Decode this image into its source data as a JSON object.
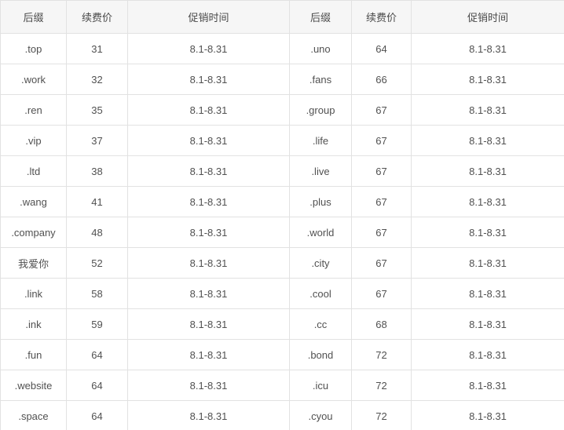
{
  "table": {
    "columns": [
      {
        "label": "后缀"
      },
      {
        "label": "续费价"
      },
      {
        "label": "促销时间"
      },
      {
        "label": "后缀"
      },
      {
        "label": "续费价"
      },
      {
        "label": "促销时间"
      }
    ],
    "rows": [
      [
        ".top",
        "31",
        "8.1-8.31",
        ".uno",
        "64",
        "8.1-8.31"
      ],
      [
        ".work",
        "32",
        "8.1-8.31",
        ".fans",
        "66",
        "8.1-8.31"
      ],
      [
        ".ren",
        "35",
        "8.1-8.31",
        ".group",
        "67",
        "8.1-8.31"
      ],
      [
        ".vip",
        "37",
        "8.1-8.31",
        ".life",
        "67",
        "8.1-8.31"
      ],
      [
        ".ltd",
        "38",
        "8.1-8.31",
        ".live",
        "67",
        "8.1-8.31"
      ],
      [
        ".wang",
        "41",
        "8.1-8.31",
        ".plus",
        "67",
        "8.1-8.31"
      ],
      [
        ".company",
        "48",
        "8.1-8.31",
        ".world",
        "67",
        "8.1-8.31"
      ],
      [
        "我爱你",
        "52",
        "8.1-8.31",
        ".city",
        "67",
        "8.1-8.31"
      ],
      [
        ".link",
        "58",
        "8.1-8.31",
        ".cool",
        "67",
        "8.1-8.31"
      ],
      [
        ".ink",
        "59",
        "8.1-8.31",
        ".cc",
        "68",
        "8.1-8.31"
      ],
      [
        ".fun",
        "64",
        "8.1-8.31",
        ".bond",
        "72",
        "8.1-8.31"
      ],
      [
        ".website",
        "64",
        "8.1-8.31",
        ".icu",
        "72",
        "8.1-8.31"
      ],
      [
        ".space",
        "64",
        "8.1-8.31",
        ".cyou",
        "72",
        "8.1-8.31"
      ]
    ]
  },
  "colors": {
    "header_background": "#f6f6f6",
    "row_background": "#ffffff",
    "border": "#e2e2e2",
    "text": "#515151"
  }
}
